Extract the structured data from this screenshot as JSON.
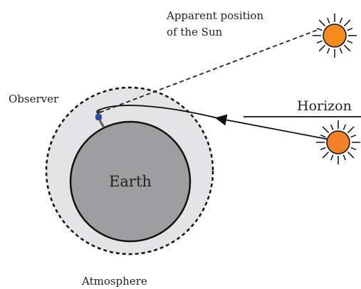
{
  "labels": {
    "apparent_position": [
      "Apparent position",
      "of the Sun"
    ],
    "observer": "Observer",
    "horizon": "Horizon",
    "earth": "Earth",
    "atmosphere": "Atmosphere"
  }
}
